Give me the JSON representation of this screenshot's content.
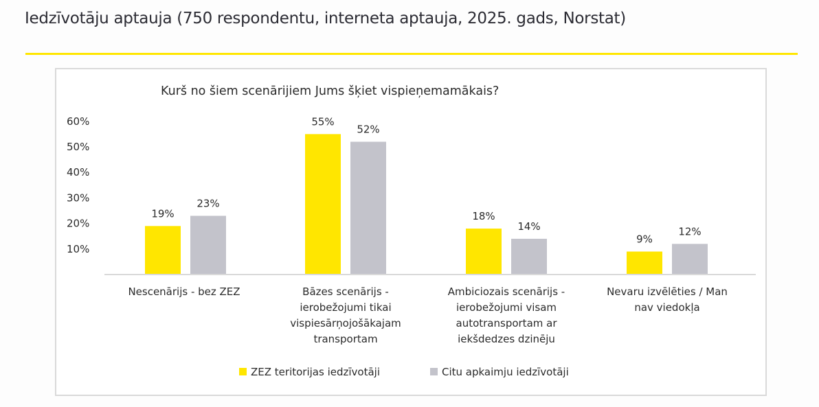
{
  "header": {
    "title": "Iedzīvotāju aptauja (750 respondentu, interneta aptauja, 2025. gads, Norstat)"
  },
  "colors": {
    "accent": "#ffe600",
    "series1": "#ffe600",
    "series2": "#c3c3cb",
    "axis": "#d9d9d9"
  },
  "chart_data": {
    "type": "bar",
    "title": "Kurš no šiem scenārijiem Jums šķiet vispieņemamākais?",
    "xlabel": "",
    "ylabel": "",
    "ylim": [
      0,
      60
    ],
    "yticks": [
      10,
      20,
      30,
      40,
      50,
      60
    ],
    "ytick_labels": [
      "10%",
      "20%",
      "30%",
      "40%",
      "50%",
      "60%"
    ],
    "grid": false,
    "legend_position": "bottom",
    "categories": [
      [
        "Nescenārijs - bez ZEZ"
      ],
      [
        "Bāzes scenārijs -",
        "ierobežojumi tikai",
        "vispiesārņojošākajam",
        "transportam"
      ],
      [
        "Ambiciozais scenārijs -",
        "ierobežojumi visam",
        "autotransportam ar",
        "iekšdedzes dzinēju"
      ],
      [
        "Nevaru izvēlēties / Man",
        "nav viedokļa"
      ]
    ],
    "series": [
      {
        "name": "ZEZ teritorijas iedzīvotāji",
        "color": "#ffe600",
        "values": [
          19,
          55,
          18,
          9
        ],
        "labels": [
          "19%",
          "55%",
          "18%",
          "9%"
        ]
      },
      {
        "name": "Citu apkaimju iedzīvotāji",
        "color": "#c3c3cb",
        "values": [
          23,
          52,
          14,
          12
        ],
        "labels": [
          "23%",
          "52%",
          "14%",
          "12%"
        ]
      }
    ]
  }
}
